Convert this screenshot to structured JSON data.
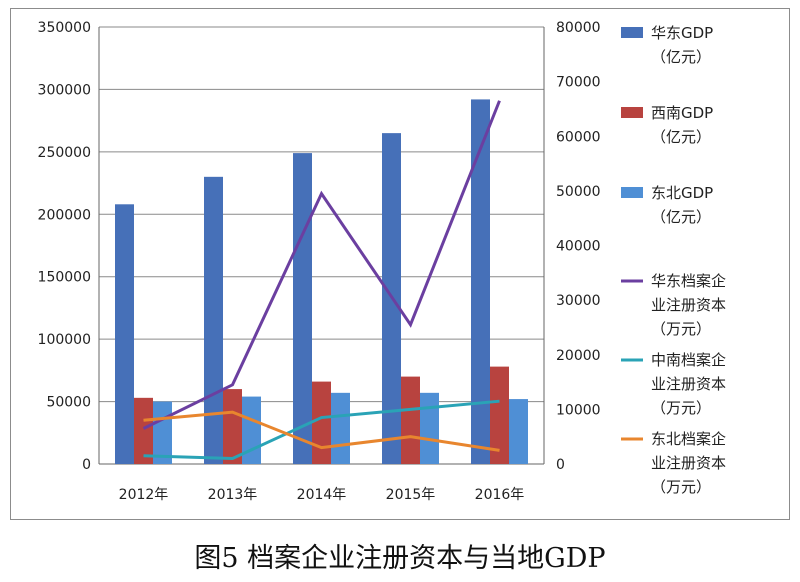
{
  "caption": "图5 档案企业注册资本与当地GDP",
  "chart_data": {
    "type": "bar",
    "categories": [
      "2012年",
      "2013年",
      "2014年",
      "2015年",
      "2016年"
    ],
    "y_left": {
      "range": [
        0,
        350000
      ],
      "ticks": [
        0,
        50000,
        100000,
        150000,
        200000,
        250000,
        300000,
        350000
      ]
    },
    "y_right": {
      "range": [
        0,
        80000
      ],
      "ticks": [
        0,
        10000,
        20000,
        30000,
        40000,
        50000,
        60000,
        70000,
        80000
      ]
    },
    "grid": true,
    "legend_position": "right",
    "bar_series": [
      {
        "legend": [
          "华东GDP",
          "（亿元）"
        ],
        "color": "#4670B8",
        "axis": "left",
        "values": [
          208000,
          230000,
          249000,
          265000,
          292000
        ]
      },
      {
        "legend": [
          "西南GDP",
          "（亿元）"
        ],
        "color": "#B8433F",
        "axis": "left",
        "values": [
          53000,
          60000,
          66000,
          70000,
          78000
        ]
      },
      {
        "legend": [
          "东北GDP",
          "（亿元）"
        ],
        "color": "#4F8FD5",
        "axis": "left",
        "values": [
          50000,
          54000,
          57000,
          57000,
          52000
        ]
      }
    ],
    "line_series": [
      {
        "legend": [
          "华东档案企",
          "业注册资本",
          "（万元）"
        ],
        "color": "#6B3FA0",
        "axis": "right",
        "values": [
          6500,
          14500,
          49500,
          25500,
          66500
        ]
      },
      {
        "legend": [
          "中南档案企",
          "业注册资本",
          "（万元）"
        ],
        "color": "#2AA3B6",
        "axis": "right",
        "values": [
          1500,
          1000,
          8500,
          10000,
          11500
        ]
      },
      {
        "legend": [
          "东北档案企",
          "业注册资本",
          "（万元）"
        ],
        "color": "#E8862E",
        "axis": "right",
        "values": [
          8000,
          9500,
          3000,
          5000,
          2500
        ]
      }
    ]
  }
}
